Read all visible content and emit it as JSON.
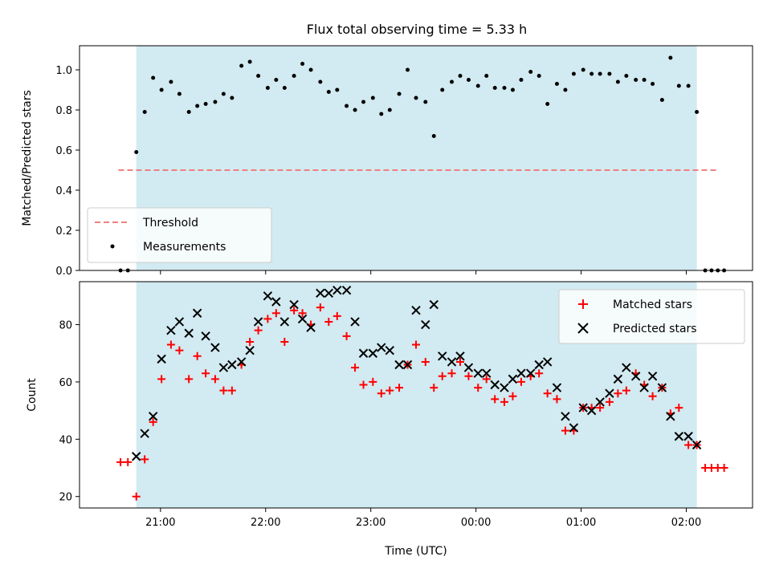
{
  "chart_data": {
    "type": "scatter",
    "title": "Flux total observing time = 5.33 h",
    "xlabel": "Time (UTC)",
    "x_ticks": [
      "21:00",
      "22:00",
      "23:00",
      "00:00",
      "01:00",
      "02:00"
    ],
    "x_tick_hours": [
      21,
      22,
      23,
      24,
      25,
      26
    ],
    "xlim_hours": [
      20.23,
      26.63
    ],
    "shaded_span_hours": [
      20.77,
      26.1
    ],
    "colors": {
      "shade": "#add8e6",
      "threshold": "#f08080",
      "measurement": "#000000",
      "matched": "#ff0000",
      "predicted": "#000000"
    },
    "panels": [
      {
        "ylabel": "Matched/Predicted stars",
        "ylim": [
          0,
          1.12
        ],
        "yticks": [
          "0.0",
          "0.2",
          "0.4",
          "0.6",
          "0.8",
          "1.0"
        ],
        "ytick_values": [
          0,
          0.2,
          0.4,
          0.6,
          0.8,
          1.0
        ],
        "legend_position": "lower-left",
        "threshold": {
          "name": "Threshold",
          "y": 0.5,
          "x_range_hours": [
            20.6,
            26.3
          ]
        },
        "measurements": {
          "name": "Measurements",
          "points": [
            [
              20.62,
              0
            ],
            [
              20.69,
              0
            ],
            [
              20.77,
              0.59
            ],
            [
              20.85,
              0.79
            ],
            [
              20.93,
              0.96
            ],
            [
              21.01,
              0.9
            ],
            [
              21.1,
              0.94
            ],
            [
              21.18,
              0.88
            ],
            [
              21.27,
              0.79
            ],
            [
              21.35,
              0.82
            ],
            [
              21.43,
              0.83
            ],
            [
              21.52,
              0.84
            ],
            [
              21.6,
              0.88
            ],
            [
              21.68,
              0.86
            ],
            [
              21.77,
              1.02
            ],
            [
              21.85,
              1.04
            ],
            [
              21.93,
              0.97
            ],
            [
              22.02,
              0.91
            ],
            [
              22.1,
              0.95
            ],
            [
              22.18,
              0.91
            ],
            [
              22.27,
              0.97
            ],
            [
              22.35,
              1.03
            ],
            [
              22.43,
              1.0
            ],
            [
              22.52,
              0.94
            ],
            [
              22.6,
              0.89
            ],
            [
              22.68,
              0.9
            ],
            [
              22.77,
              0.82
            ],
            [
              22.85,
              0.8
            ],
            [
              22.93,
              0.84
            ],
            [
              23.02,
              0.86
            ],
            [
              23.1,
              0.78
            ],
            [
              23.18,
              0.8
            ],
            [
              23.27,
              0.88
            ],
            [
              23.35,
              1.0
            ],
            [
              23.43,
              0.86
            ],
            [
              23.52,
              0.84
            ],
            [
              23.6,
              0.67
            ],
            [
              23.68,
              0.9
            ],
            [
              23.77,
              0.94
            ],
            [
              23.85,
              0.97
            ],
            [
              23.93,
              0.95
            ],
            [
              24.02,
              0.92
            ],
            [
              24.1,
              0.97
            ],
            [
              24.18,
              0.91
            ],
            [
              24.27,
              0.91
            ],
            [
              24.35,
              0.9
            ],
            [
              24.43,
              0.95
            ],
            [
              24.52,
              0.99
            ],
            [
              24.6,
              0.97
            ],
            [
              24.68,
              0.83
            ],
            [
              24.77,
              0.93
            ],
            [
              24.85,
              0.9
            ],
            [
              24.93,
              0.98
            ],
            [
              25.02,
              1.0
            ],
            [
              25.1,
              0.98
            ],
            [
              25.18,
              0.98
            ],
            [
              25.27,
              0.98
            ],
            [
              25.35,
              0.94
            ],
            [
              25.43,
              0.97
            ],
            [
              25.52,
              0.95
            ],
            [
              25.6,
              0.95
            ],
            [
              25.68,
              0.93
            ],
            [
              25.77,
              0.85
            ],
            [
              25.85,
              1.06
            ],
            [
              25.93,
              0.92
            ],
            [
              26.02,
              0.92
            ],
            [
              26.1,
              0.79
            ],
            [
              26.18,
              0
            ],
            [
              26.24,
              0
            ],
            [
              26.3,
              0
            ],
            [
              26.36,
              0
            ]
          ]
        }
      },
      {
        "ylabel": "Count",
        "ylim": [
          16,
          95
        ],
        "yticks": [
          "20",
          "40",
          "60",
          "80"
        ],
        "ytick_values": [
          20,
          40,
          60,
          80
        ],
        "legend_position": "upper-right",
        "series": [
          {
            "name": "Matched stars",
            "marker": "plus",
            "points": [
              [
                20.62,
                32
              ],
              [
                20.69,
                32
              ],
              [
                20.77,
                20
              ],
              [
                20.85,
                33
              ],
              [
                20.93,
                46
              ],
              [
                21.01,
                61
              ],
              [
                21.1,
                73
              ],
              [
                21.18,
                71
              ],
              [
                21.27,
                61
              ],
              [
                21.35,
                69
              ],
              [
                21.43,
                63
              ],
              [
                21.52,
                61
              ],
              [
                21.6,
                57
              ],
              [
                21.68,
                57
              ],
              [
                21.77,
                66
              ],
              [
                21.85,
                74
              ],
              [
                21.93,
                78
              ],
              [
                22.02,
                82
              ],
              [
                22.1,
                84
              ],
              [
                22.18,
                74
              ],
              [
                22.27,
                85
              ],
              [
                22.35,
                84
              ],
              [
                22.43,
                80
              ],
              [
                22.52,
                86
              ],
              [
                22.6,
                81
              ],
              [
                22.68,
                83
              ],
              [
                22.77,
                76
              ],
              [
                22.85,
                65
              ],
              [
                22.93,
                59
              ],
              [
                23.02,
                60
              ],
              [
                23.1,
                56
              ],
              [
                23.18,
                57
              ],
              [
                23.27,
                58
              ],
              [
                23.35,
                66
              ],
              [
                23.43,
                73
              ],
              [
                23.52,
                67
              ],
              [
                23.6,
                58
              ],
              [
                23.68,
                62
              ],
              [
                23.77,
                63
              ],
              [
                23.85,
                67
              ],
              [
                23.93,
                62
              ],
              [
                24.02,
                58
              ],
              [
                24.1,
                61
              ],
              [
                24.18,
                54
              ],
              [
                24.27,
                53
              ],
              [
                24.35,
                55
              ],
              [
                24.43,
                60
              ],
              [
                24.52,
                62
              ],
              [
                24.6,
                63
              ],
              [
                24.68,
                56
              ],
              [
                24.77,
                54
              ],
              [
                24.85,
                43
              ],
              [
                24.93,
                43
              ],
              [
                25.02,
                51
              ],
              [
                25.1,
                51
              ],
              [
                25.18,
                51
              ],
              [
                25.27,
                53
              ],
              [
                25.35,
                56
              ],
              [
                25.43,
                57
              ],
              [
                25.52,
                63
              ],
              [
                25.6,
                59
              ],
              [
                25.68,
                55
              ],
              [
                25.77,
                58
              ],
              [
                25.85,
                49
              ],
              [
                25.93,
                51
              ],
              [
                26.02,
                38
              ],
              [
                26.1,
                38
              ],
              [
                26.18,
                30
              ],
              [
                26.24,
                30
              ],
              [
                26.3,
                30
              ],
              [
                26.36,
                30
              ]
            ]
          },
          {
            "name": "Predicted stars",
            "marker": "x",
            "points": [
              [
                20.77,
                34
              ],
              [
                20.85,
                42
              ],
              [
                20.93,
                48
              ],
              [
                21.01,
                68
              ],
              [
                21.1,
                78
              ],
              [
                21.18,
                81
              ],
              [
                21.27,
                77
              ],
              [
                21.35,
                84
              ],
              [
                21.43,
                76
              ],
              [
                21.52,
                72
              ],
              [
                21.6,
                65
              ],
              [
                21.68,
                66
              ],
              [
                21.77,
                67
              ],
              [
                21.85,
                71
              ],
              [
                21.93,
                81
              ],
              [
                22.02,
                90
              ],
              [
                22.1,
                88
              ],
              [
                22.18,
                81
              ],
              [
                22.27,
                87
              ],
              [
                22.35,
                82
              ],
              [
                22.43,
                79
              ],
              [
                22.52,
                91
              ],
              [
                22.6,
                91
              ],
              [
                22.68,
                92
              ],
              [
                22.77,
                92
              ],
              [
                22.85,
                81
              ],
              [
                22.93,
                70
              ],
              [
                23.02,
                70
              ],
              [
                23.1,
                72
              ],
              [
                23.18,
                71
              ],
              [
                23.27,
                66
              ],
              [
                23.35,
                66
              ],
              [
                23.43,
                85
              ],
              [
                23.52,
                80
              ],
              [
                23.6,
                87
              ],
              [
                23.68,
                69
              ],
              [
                23.77,
                67
              ],
              [
                23.85,
                69
              ],
              [
                23.93,
                65
              ],
              [
                24.02,
                63
              ],
              [
                24.1,
                63
              ],
              [
                24.18,
                59
              ],
              [
                24.27,
                58
              ],
              [
                24.35,
                61
              ],
              [
                24.43,
                63
              ],
              [
                24.52,
                63
              ],
              [
                24.6,
                66
              ],
              [
                24.68,
                67
              ],
              [
                24.77,
                58
              ],
              [
                24.85,
                48
              ],
              [
                24.93,
                44
              ],
              [
                25.02,
                51
              ],
              [
                25.1,
                50
              ],
              [
                25.18,
                53
              ],
              [
                25.27,
                56
              ],
              [
                25.35,
                61
              ],
              [
                25.43,
                65
              ],
              [
                25.52,
                62
              ],
              [
                25.6,
                58
              ],
              [
                25.68,
                62
              ],
              [
                25.77,
                58
              ],
              [
                25.85,
                48
              ],
              [
                25.93,
                41
              ],
              [
                26.02,
                41
              ],
              [
                26.1,
                38
              ]
            ]
          }
        ]
      }
    ]
  }
}
